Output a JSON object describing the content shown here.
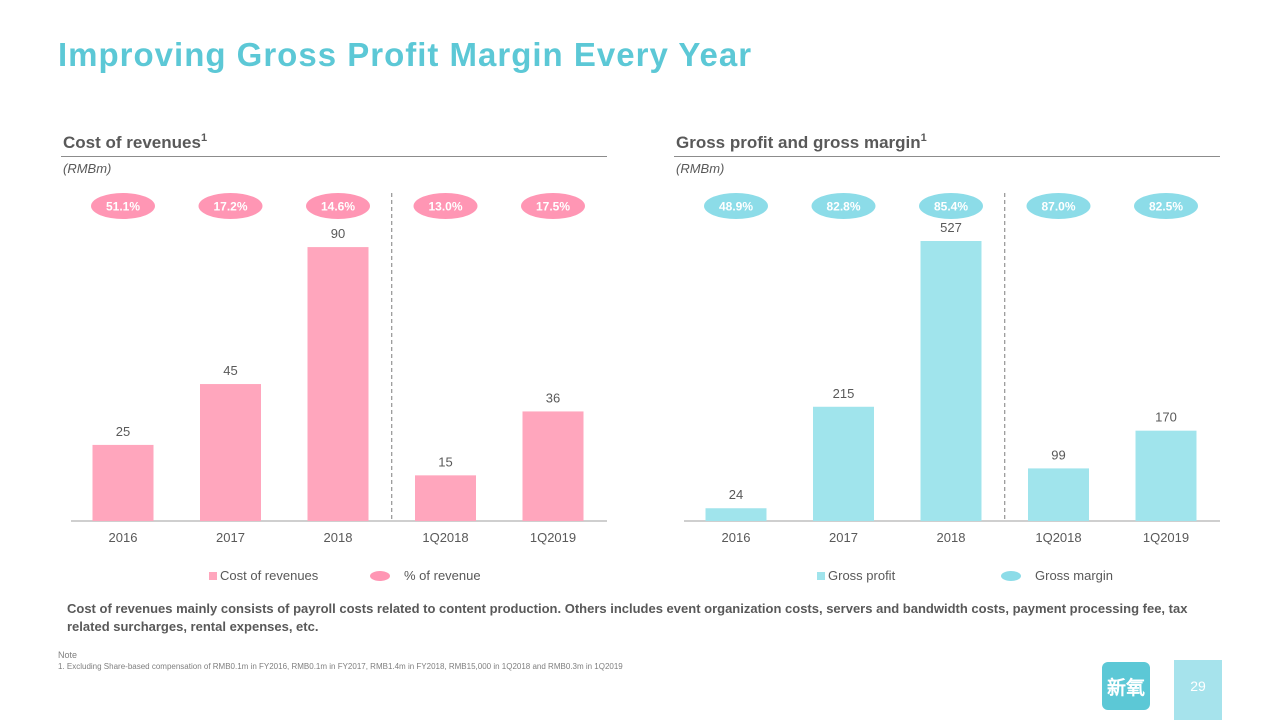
{
  "page": {
    "title": "Improving Gross Profit Margin Every Year",
    "description": "Cost of revenues mainly consists of payroll costs related to content production. Others includes event organization costs, servers and bandwidth costs, payment processing fee, tax related surcharges, rental expenses, etc.",
    "note_heading": "Note",
    "note_text": "1. Excluding Share-based compensation of RMB0.1m in FY2016, RMB0.1m in FY2017, RMB1.4m in FY2018, RMB15,000 in 1Q2018 and RMB0.3m in 1Q2019",
    "logo_text": "新氧",
    "page_number": "29"
  },
  "colors": {
    "title": "#5cc8d6",
    "cost_bar": "#ffa6bd",
    "cost_badge": "#ff96b4",
    "profit_bar": "#a0e4ec",
    "profit_badge": "#8cdce8",
    "axis": "#bfbfbf"
  },
  "chart_data": [
    {
      "type": "bar",
      "title": "Cost of revenues",
      "title_superscript": "1",
      "unit": "(RMBm)",
      "categories": [
        "2016",
        "2017",
        "2018",
        "1Q2018",
        "1Q2019"
      ],
      "series": [
        {
          "name": "Cost of revenues",
          "values": [
            25,
            45,
            90,
            15,
            36
          ]
        }
      ],
      "ratio_labels": [
        "51.1%",
        "17.2%",
        "14.6%",
        "13.0%",
        "17.5%"
      ],
      "ratio_legend": "% of revenue",
      "ylim": [
        0,
        92
      ],
      "divider_after_index": 2,
      "grid": false,
      "legend_position": "bottom"
    },
    {
      "type": "bar",
      "title": "Gross profit and gross margin",
      "title_superscript": "1",
      "unit": "(RMBm)",
      "categories": [
        "2016",
        "2017",
        "2018",
        "1Q2018",
        "1Q2019"
      ],
      "series": [
        {
          "name": "Gross profit",
          "values": [
            24,
            215,
            527,
            99,
            170
          ]
        }
      ],
      "ratio_labels": [
        "48.9%",
        "82.8%",
        "85.4%",
        "87.0%",
        "82.5%"
      ],
      "ratio_legend": "Gross margin",
      "ylim": [
        0,
        527
      ],
      "divider_after_index": 2,
      "grid": false,
      "legend_position": "bottom"
    }
  ]
}
